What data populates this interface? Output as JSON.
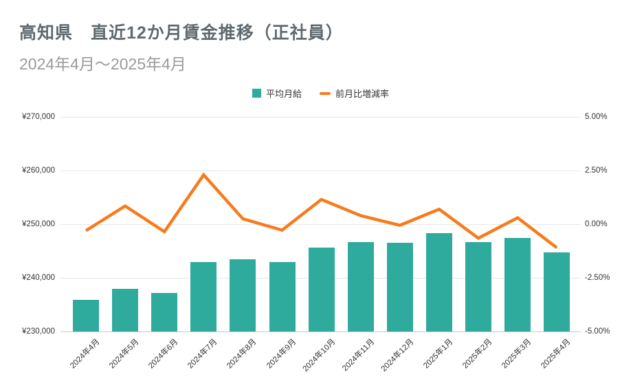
{
  "header": {
    "title": "高知県　直近12か月賃金推移（正社員）",
    "subtitle": "2024年4月～2025年4月"
  },
  "legend": {
    "items": [
      {
        "label": "平均月給",
        "marker": "square",
        "color": "#2fab9d"
      },
      {
        "label": "前月比増減率",
        "marker": "dash",
        "color": "#f87b1b"
      }
    ]
  },
  "axes": {
    "left_ticks": [
      "¥270,000",
      "¥260,000",
      "¥250,000",
      "¥240,000",
      "¥230,000"
    ],
    "right_ticks": [
      "5.00%",
      "2.50%",
      "0.00%",
      "-2.50%",
      "-5.00%"
    ]
  },
  "colors": {
    "bar": "#2fab9d",
    "line": "#f87b1b",
    "title": "#5f6a70",
    "subtitle": "#9a9a9a",
    "axis_text": "#333333",
    "gridline": "#e6e6e6",
    "baseline": "#c8c8c8",
    "background": "#ffffff"
  },
  "chart_data": {
    "type": "bar",
    "subtype": "combo-bar-line",
    "title": "高知県　直近12か月賃金推移（正社員）",
    "subtitle": "2024年4月～2025年4月",
    "categories": [
      "2024年4月",
      "2024年5月",
      "2024年6月",
      "2024年7月",
      "2024年8月",
      "2024年9月",
      "2024年10月",
      "2024年11月",
      "2024年12月",
      "2025年1月",
      "2025年2月",
      "2025年3月",
      "2025年4月"
    ],
    "series": [
      {
        "name": "平均月給",
        "type": "bar",
        "axis": "left",
        "unit": "¥",
        "color": "#2fab9d",
        "values": [
          235900,
          238000,
          237200,
          242900,
          243500,
          242900,
          245700,
          246700,
          246600,
          248300,
          246700,
          247500,
          244700
        ]
      },
      {
        "name": "前月比増減率",
        "type": "line",
        "axis": "right",
        "unit": "%",
        "color": "#f87b1b",
        "values": [
          -0.3,
          0.85,
          -0.35,
          2.3,
          0.25,
          -0.28,
          1.15,
          0.4,
          -0.05,
          0.7,
          -0.65,
          0.3,
          -1.1
        ]
      }
    ],
    "xlabel": "",
    "ylabel_left": "平均月給",
    "ylabel_right": "前月比増減率",
    "left_axis_range": [
      230000,
      270000
    ],
    "right_axis_range": [
      -5,
      5
    ],
    "grid": true,
    "legend_position": "top"
  }
}
